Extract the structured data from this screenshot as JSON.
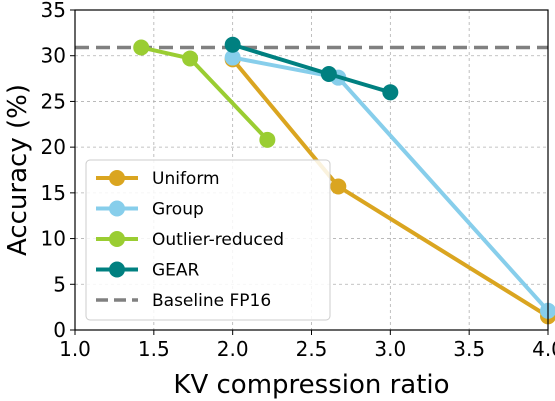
{
  "chart_data": {
    "type": "line",
    "title": "",
    "xlabel": "KV compression ratio",
    "ylabel": "Accuracy (%)",
    "xlim": [
      1.0,
      4.0
    ],
    "ylim": [
      0,
      35
    ],
    "xticks": [
      "1.0",
      "1.5",
      "2.0",
      "2.5",
      "3.0",
      "3.5",
      "4.0"
    ],
    "yticks": [
      "0",
      "5",
      "10",
      "15",
      "20",
      "25",
      "30",
      "35"
    ],
    "grid": true,
    "legend_position": "lower-left",
    "series": [
      {
        "name": "Uniform",
        "color": "#DAA520",
        "x": [
          2.0,
          2.67,
          4.0
        ],
        "y": [
          29.6,
          15.7,
          1.5
        ]
      },
      {
        "name": "Group",
        "color": "#87CEEB",
        "x": [
          2.0,
          2.67,
          4.0
        ],
        "y": [
          29.8,
          27.6,
          2.1
        ]
      },
      {
        "name": "Outlier-reduced",
        "color": "#9ACD32",
        "x": [
          1.42,
          1.73,
          2.22
        ],
        "y": [
          30.9,
          29.7,
          20.8
        ]
      },
      {
        "name": "GEAR",
        "color": "#008080",
        "x": [
          2.0,
          2.61,
          3.0
        ],
        "y": [
          31.2,
          28.0,
          26.0
        ]
      }
    ],
    "baseline": {
      "name": "Baseline FP16",
      "y": 30.9,
      "color": "#808080",
      "style": "dashed"
    }
  }
}
